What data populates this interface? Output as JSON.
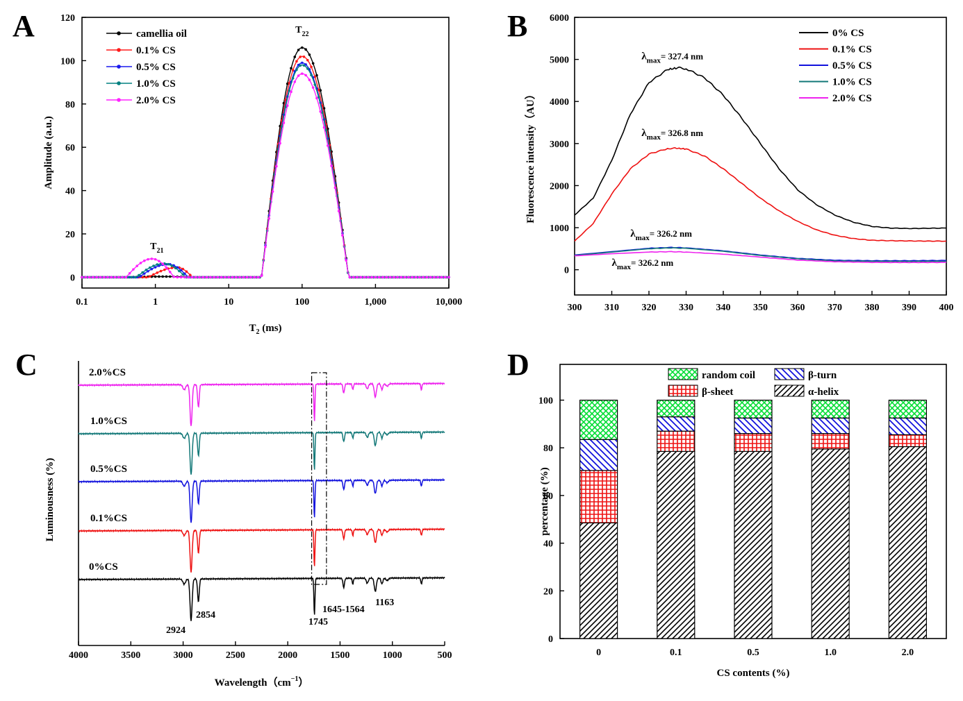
{
  "panels": {
    "A": "A",
    "B": "B",
    "C": "C",
    "D": "D"
  },
  "chart_data": [
    {
      "panel": "A",
      "type": "line",
      "xscale": "log",
      "xlabel": "T",
      "xlabel_sub": "2",
      "xlabel_unit": " (ms)",
      "ylabel": "Amplitude (a.u.)",
      "xlim": [
        0.1,
        10000
      ],
      "ylim": [
        -5,
        120
      ],
      "xticks": [
        0.1,
        1,
        10,
        100,
        1000,
        10000
      ],
      "xtick_labels": [
        "0.1",
        "1",
        "10",
        "100",
        "1,000",
        "10,000"
      ],
      "yticks": [
        0,
        20,
        40,
        60,
        80,
        100,
        120
      ],
      "annotations": [
        {
          "text": "T",
          "sub": "21",
          "x": 1.05,
          "y": 13
        },
        {
          "text": "T",
          "sub": "22",
          "x": 100,
          "y": 113
        }
      ],
      "legend_position": "top-left",
      "series": [
        {
          "name": "camellia oil",
          "color": "#000000",
          "marker": "square",
          "p1_center": 1.3,
          "p1_amp": 0.3,
          "p2_amp": 106,
          "p1_range": [
            0.4,
            3.5
          ]
        },
        {
          "name": "0.1% CS",
          "color": "#ff1a1a",
          "marker": "circle",
          "p1_center": 2.0,
          "p1_amp": 4.5,
          "p2_amp": 102,
          "p1_range": [
            0.8,
            3.2
          ]
        },
        {
          "name": "0.5% CS",
          "color": "#1a1aee",
          "marker": "triangle-up",
          "p1_center": 1.5,
          "p1_amp": 6.0,
          "p2_amp": 99,
          "p1_range": [
            0.6,
            2.8
          ]
        },
        {
          "name": "1.0% CS",
          "color": "#008080",
          "marker": "triangle-down",
          "p1_center": 1.3,
          "p1_amp": 6.3,
          "p2_amp": 98,
          "p1_range": [
            0.55,
            2.6
          ]
        },
        {
          "name": "2.0% CS",
          "color": "#ff22ff",
          "marker": "diamond",
          "p1_center": 0.9,
          "p1_amp": 8.5,
          "p2_amp": 94,
          "p1_range": [
            0.4,
            1.8
          ]
        }
      ]
    },
    {
      "panel": "B",
      "type": "line",
      "xlabel": "",
      "ylabel": "Fluorescence intensity（AU）",
      "xlim": [
        300,
        400
      ],
      "ylim": [
        -600,
        6000
      ],
      "xticks": [
        300,
        310,
        320,
        330,
        340,
        350,
        360,
        370,
        380,
        390,
        400
      ],
      "yticks": [
        0,
        1000,
        2000,
        3000,
        4000,
        5000,
        6000
      ],
      "legend_position": "top-right",
      "annotations": [
        {
          "text": "λ",
          "sub": "max",
          "rest": "= 327.4 nm",
          "x": 318,
          "y": 5000
        },
        {
          "text": "λ",
          "sub": "max",
          "rest": "= 326.8 nm",
          "x": 318,
          "y": 3180
        },
        {
          "text": "λ",
          "sub": "max",
          "rest": "= 326.2 nm",
          "x": 315,
          "y": 790
        },
        {
          "text": "λ",
          "sub": "max",
          "rest": "= 326.2 nm",
          "x": 310,
          "y": 90
        }
      ],
      "series": [
        {
          "name": "0% CS",
          "color": "#000000",
          "x": [
            300,
            305,
            310,
            315,
            320,
            325,
            328,
            330,
            335,
            340,
            345,
            350,
            355,
            360,
            365,
            370,
            375,
            380,
            385,
            390,
            395,
            400
          ],
          "y": [
            1300,
            1700,
            2600,
            3700,
            4450,
            4760,
            4800,
            4780,
            4560,
            4150,
            3600,
            3000,
            2400,
            1900,
            1550,
            1300,
            1130,
            1030,
            990,
            980,
            985,
            990
          ]
        },
        {
          "name": "0.1% CS",
          "color": "#ee1111",
          "x": [
            300,
            305,
            310,
            315,
            320,
            325,
            327,
            330,
            335,
            340,
            345,
            350,
            355,
            360,
            365,
            370,
            375,
            380,
            385,
            390,
            395,
            400
          ],
          "y": [
            680,
            1100,
            1800,
            2400,
            2750,
            2880,
            2890,
            2870,
            2700,
            2400,
            2050,
            1700,
            1400,
            1150,
            950,
            820,
            740,
            700,
            690,
            685,
            680,
            680
          ]
        },
        {
          "name": "0.5% CS",
          "color": "#1111dd",
          "x": [
            300,
            310,
            320,
            326,
            330,
            340,
            350,
            360,
            370,
            380,
            390,
            400
          ],
          "y": [
            350,
            430,
            510,
            530,
            520,
            450,
            350,
            270,
            225,
            215,
            215,
            220
          ]
        },
        {
          "name": "1.0% CS",
          "color": "#117777",
          "x": [
            300,
            310,
            320,
            326,
            330,
            340,
            350,
            360,
            370,
            380,
            390,
            400
          ],
          "y": [
            340,
            420,
            500,
            520,
            510,
            440,
            340,
            260,
            210,
            200,
            198,
            200
          ]
        },
        {
          "name": "2.0% CS",
          "color": "#ee22ee",
          "x": [
            300,
            310,
            320,
            326,
            330,
            340,
            350,
            360,
            370,
            380,
            390,
            400
          ],
          "y": [
            330,
            380,
            420,
            430,
            420,
            370,
            300,
            230,
            190,
            175,
            172,
            175
          ]
        }
      ]
    },
    {
      "panel": "C",
      "type": "line",
      "xlabel": "Wavelength（cm",
      "xlabel_sup": "−1",
      "xlabel_close": "）",
      "ylabel": "Luminousness (%)",
      "xlim": [
        4000,
        500
      ],
      "xticks": [
        4000,
        3500,
        3000,
        2500,
        2000,
        1500,
        1000,
        500
      ],
      "peak_labels": [
        "2924",
        "2854",
        "1745",
        "1645-1564",
        "1163"
      ],
      "box_range": [
        1745,
        1630
      ],
      "series": [
        {
          "name": "0%CS",
          "color": "#000000"
        },
        {
          "name": "0.1%CS",
          "color": "#ee1111"
        },
        {
          "name": "0.5%CS",
          "color": "#1111dd"
        },
        {
          "name": "1.0%CS",
          "color": "#117777"
        },
        {
          "name": "2.0%CS",
          "color": "#ee22ee"
        }
      ]
    },
    {
      "panel": "D",
      "type": "bar",
      "stacked": true,
      "xlabel": "CS contents (%)",
      "ylabel": "percentage (%)",
      "ylim": [
        0,
        115
      ],
      "yticks": [
        0,
        20,
        40,
        60,
        80,
        100
      ],
      "categories": [
        "0",
        "0.1",
        "0.5",
        "1.0",
        "2.0"
      ],
      "legend_position": "top",
      "series": [
        {
          "name": "α-helix",
          "pattern": "diag",
          "color": "#000000",
          "values": [
            48.5,
            78.5,
            78.5,
            79.5,
            80.5
          ]
        },
        {
          "name": "β-sheet",
          "pattern": "grid",
          "color": "#ee1111",
          "values": [
            22.0,
            8.5,
            7.5,
            6.5,
            5.0
          ]
        },
        {
          "name": "β-turn",
          "pattern": "back",
          "color": "#1111dd",
          "values": [
            13.0,
            6.0,
            6.5,
            6.5,
            7.0
          ]
        },
        {
          "name": "random coil",
          "pattern": "cross",
          "color": "#00dd33",
          "values": [
            16.5,
            7.0,
            7.5,
            7.5,
            7.5
          ]
        }
      ]
    }
  ]
}
